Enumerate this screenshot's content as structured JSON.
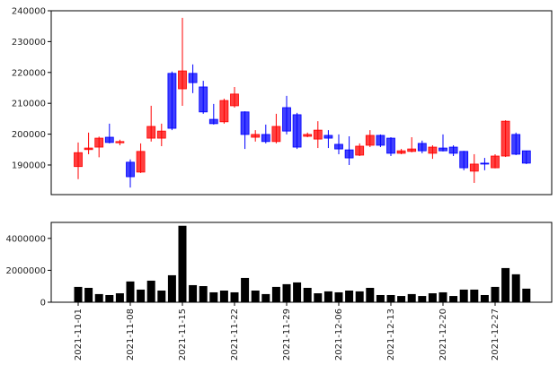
{
  "chart_data": [
    {
      "type": "candlestick",
      "up_color": "#ff0000",
      "down_color": "#0000ff",
      "ylim": [
        180400,
        240000
      ],
      "yticks": [
        190000,
        200000,
        210000,
        220000,
        230000,
        240000
      ],
      "open": [
        189500,
        195000,
        195800,
        199000,
        197200,
        190900,
        187700,
        198700,
        198700,
        219700,
        214700,
        219700,
        215300,
        204800,
        204000,
        209200,
        207200,
        199000,
        199900,
        197600,
        208600,
        206300,
        199300,
        198400,
        199600,
        196700,
        194900,
        193200,
        196400,
        199600,
        198700,
        193800,
        194400,
        197000,
        193800,
        195500,
        195800,
        194400,
        188000,
        190600,
        189100,
        192900,
        199900,
        194600
      ],
      "high": [
        197300,
        200500,
        199200,
        203400,
        198200,
        191800,
        197000,
        209200,
        203400,
        220300,
        237700,
        222600,
        217300,
        209800,
        211500,
        215300,
        207400,
        201300,
        203100,
        206600,
        212400,
        206900,
        200500,
        204200,
        201300,
        199900,
        199300,
        197000,
        201300,
        199900,
        199000,
        195200,
        199000,
        197900,
        196400,
        199900,
        196400,
        194600,
        193500,
        192300,
        193500,
        204500,
        200500,
        194600
      ],
      "low": [
        185400,
        193500,
        192500,
        197000,
        196400,
        182700,
        187400,
        197600,
        196100,
        201300,
        209200,
        213300,
        206600,
        203100,
        203400,
        208600,
        195200,
        197600,
        197000,
        197000,
        199900,
        195200,
        199000,
        195500,
        195500,
        193500,
        190000,
        192900,
        195800,
        195800,
        192900,
        193500,
        194100,
        193800,
        192000,
        194400,
        192900,
        188300,
        184200,
        188300,
        188900,
        192600,
        193200,
        190300
      ],
      "close": [
        194000,
        195500,
        198700,
        197300,
        197600,
        186200,
        194400,
        202500,
        201000,
        201900,
        220500,
        216700,
        207200,
        203400,
        210900,
        213000,
        199900,
        199900,
        197600,
        202500,
        201000,
        195800,
        199900,
        201300,
        198700,
        195200,
        192300,
        196100,
        199600,
        196400,
        193800,
        194600,
        195200,
        194600,
        195800,
        194600,
        193800,
        189100,
        190300,
        190300,
        192900,
        204200,
        193500,
        190600
      ]
    },
    {
      "type": "bar",
      "color": "#000000",
      "ylim": [
        0,
        5000000
      ],
      "yticks": [
        0,
        2000000,
        4000000
      ],
      "categories": [
        "2021-11-01",
        null,
        null,
        null,
        null,
        "2021-11-08",
        null,
        null,
        null,
        null,
        "2021-11-15",
        null,
        null,
        null,
        null,
        "2021-11-22",
        null,
        null,
        null,
        null,
        "2021-11-29",
        null,
        null,
        null,
        null,
        "2021-12-06",
        null,
        null,
        null,
        null,
        "2021-12-13",
        null,
        null,
        null,
        null,
        "2021-12-20",
        null,
        null,
        null,
        null,
        "2021-12-27",
        null,
        null,
        null
      ],
      "values": [
        960000,
        900000,
        510000,
        450000,
        560000,
        1300000,
        790000,
        1350000,
        730000,
        1690000,
        4790000,
        1070000,
        1010000,
        620000,
        730000,
        620000,
        1520000,
        730000,
        510000,
        960000,
        1130000,
        1240000,
        900000,
        560000,
        680000,
        620000,
        730000,
        680000,
        900000,
        450000,
        450000,
        390000,
        510000,
        390000,
        560000,
        620000,
        390000,
        790000,
        790000,
        450000,
        960000,
        2140000,
        1750000,
        850000
      ]
    }
  ]
}
